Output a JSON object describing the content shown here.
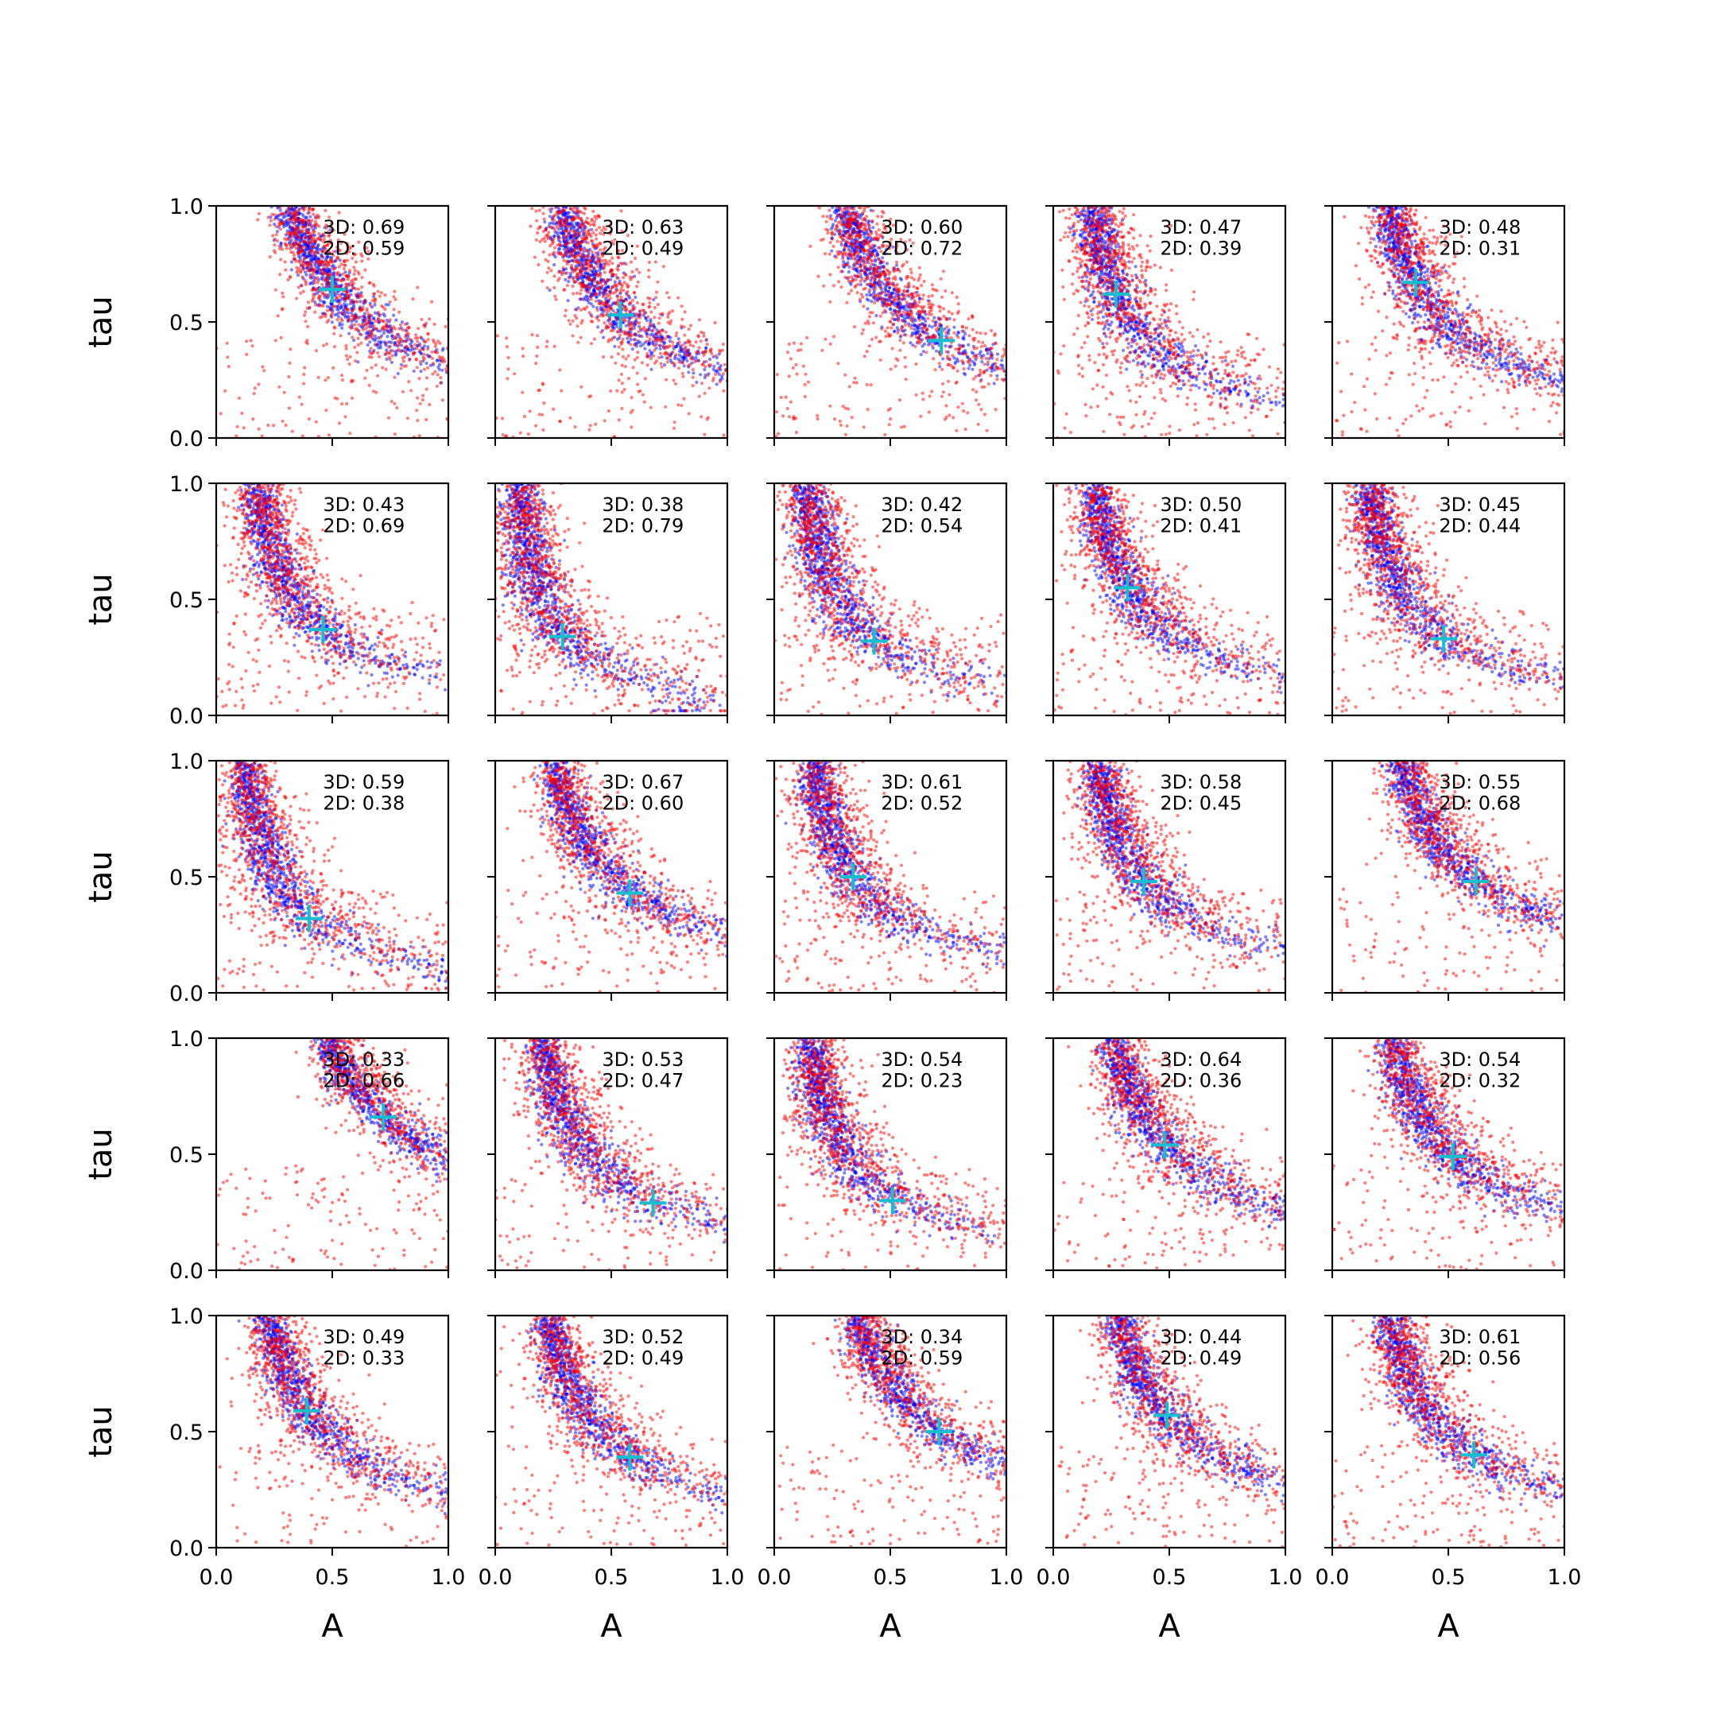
{
  "chart_data": {
    "type": "scatter",
    "layout": "5x5 grid of scatter panels",
    "xlabel": "A",
    "ylabel": "tau",
    "xlim": [
      0,
      1
    ],
    "ylim": [
      0,
      1
    ],
    "xticks": [
      "0.0",
      "0.5",
      "1.0"
    ],
    "yticks": [
      "0.0",
      "0.5",
      "1.0"
    ],
    "series_colors": {
      "3D": "#0000ff",
      "2D": "#ff0000",
      "truth": "#17becf"
    },
    "panels": [
      {
        "row": 1,
        "col": 1,
        "ann3d": "3D: 0.69",
        "ann2d": "2D: 0.59",
        "truth": [
          0.5,
          0.64
        ]
      },
      {
        "row": 1,
        "col": 2,
        "ann3d": "3D: 0.63",
        "ann2d": "2D: 0.49",
        "truth": [
          0.54,
          0.53
        ]
      },
      {
        "row": 1,
        "col": 3,
        "ann3d": "3D: 0.60",
        "ann2d": "2D: 0.72",
        "truth": [
          0.72,
          0.42
        ]
      },
      {
        "row": 1,
        "col": 4,
        "ann3d": "3D: 0.47",
        "ann2d": "2D: 0.39",
        "truth": [
          0.27,
          0.62
        ]
      },
      {
        "row": 1,
        "col": 5,
        "ann3d": "3D: 0.48",
        "ann2d": "2D: 0.31",
        "truth": [
          0.36,
          0.67
        ]
      },
      {
        "row": 2,
        "col": 1,
        "ann3d": "3D: 0.43",
        "ann2d": "2D: 0.69",
        "truth": [
          0.46,
          0.37
        ]
      },
      {
        "row": 2,
        "col": 2,
        "ann3d": "3D: 0.38",
        "ann2d": "2D: 0.79",
        "truth": [
          0.29,
          0.34
        ]
      },
      {
        "row": 2,
        "col": 3,
        "ann3d": "3D: 0.42",
        "ann2d": "2D: 0.54",
        "truth": [
          0.43,
          0.32
        ]
      },
      {
        "row": 2,
        "col": 4,
        "ann3d": "3D: 0.50",
        "ann2d": "2D: 0.41",
        "truth": [
          0.32,
          0.55
        ]
      },
      {
        "row": 2,
        "col": 5,
        "ann3d": "3D: 0.45",
        "ann2d": "2D: 0.44",
        "truth": [
          0.48,
          0.33
        ]
      },
      {
        "row": 3,
        "col": 1,
        "ann3d": "3D: 0.59",
        "ann2d": "2D: 0.38",
        "truth": [
          0.4,
          0.32
        ]
      },
      {
        "row": 3,
        "col": 2,
        "ann3d": "3D: 0.67",
        "ann2d": "2D: 0.60",
        "truth": [
          0.58,
          0.43
        ]
      },
      {
        "row": 3,
        "col": 3,
        "ann3d": "3D: 0.61",
        "ann2d": "2D: 0.52",
        "truth": [
          0.34,
          0.5
        ]
      },
      {
        "row": 3,
        "col": 4,
        "ann3d": "3D: 0.58",
        "ann2d": "2D: 0.45",
        "truth": [
          0.39,
          0.48
        ]
      },
      {
        "row": 3,
        "col": 5,
        "ann3d": "3D: 0.55",
        "ann2d": "2D: 0.68",
        "truth": [
          0.62,
          0.48
        ]
      },
      {
        "row": 4,
        "col": 1,
        "ann3d": "3D: 0.33",
        "ann2d": "2D: 0.66",
        "truth": [
          0.72,
          0.66
        ]
      },
      {
        "row": 4,
        "col": 2,
        "ann3d": "3D: 0.53",
        "ann2d": "2D: 0.47",
        "truth": [
          0.68,
          0.29
        ]
      },
      {
        "row": 4,
        "col": 3,
        "ann3d": "3D: 0.54",
        "ann2d": "2D: 0.23",
        "truth": [
          0.51,
          0.3
        ]
      },
      {
        "row": 4,
        "col": 4,
        "ann3d": "3D: 0.64",
        "ann2d": "2D: 0.36",
        "truth": [
          0.48,
          0.54
        ]
      },
      {
        "row": 4,
        "col": 5,
        "ann3d": "3D: 0.54",
        "ann2d": "2D: 0.32",
        "truth": [
          0.52,
          0.49
        ]
      },
      {
        "row": 5,
        "col": 1,
        "ann3d": "3D: 0.49",
        "ann2d": "2D: 0.33",
        "truth": [
          0.39,
          0.59
        ]
      },
      {
        "row": 5,
        "col": 2,
        "ann3d": "3D: 0.52",
        "ann2d": "2D: 0.49",
        "truth": [
          0.58,
          0.39
        ]
      },
      {
        "row": 5,
        "col": 3,
        "ann3d": "3D: 0.34",
        "ann2d": "2D: 0.59",
        "truth": [
          0.71,
          0.5
        ]
      },
      {
        "row": 5,
        "col": 4,
        "ann3d": "3D: 0.44",
        "ann2d": "2D: 0.49",
        "truth": [
          0.49,
          0.57
        ]
      },
      {
        "row": 5,
        "col": 5,
        "ann3d": "3D: 0.61",
        "ann2d": "2D: 0.56",
        "truth": [
          0.61,
          0.4
        ]
      }
    ]
  }
}
